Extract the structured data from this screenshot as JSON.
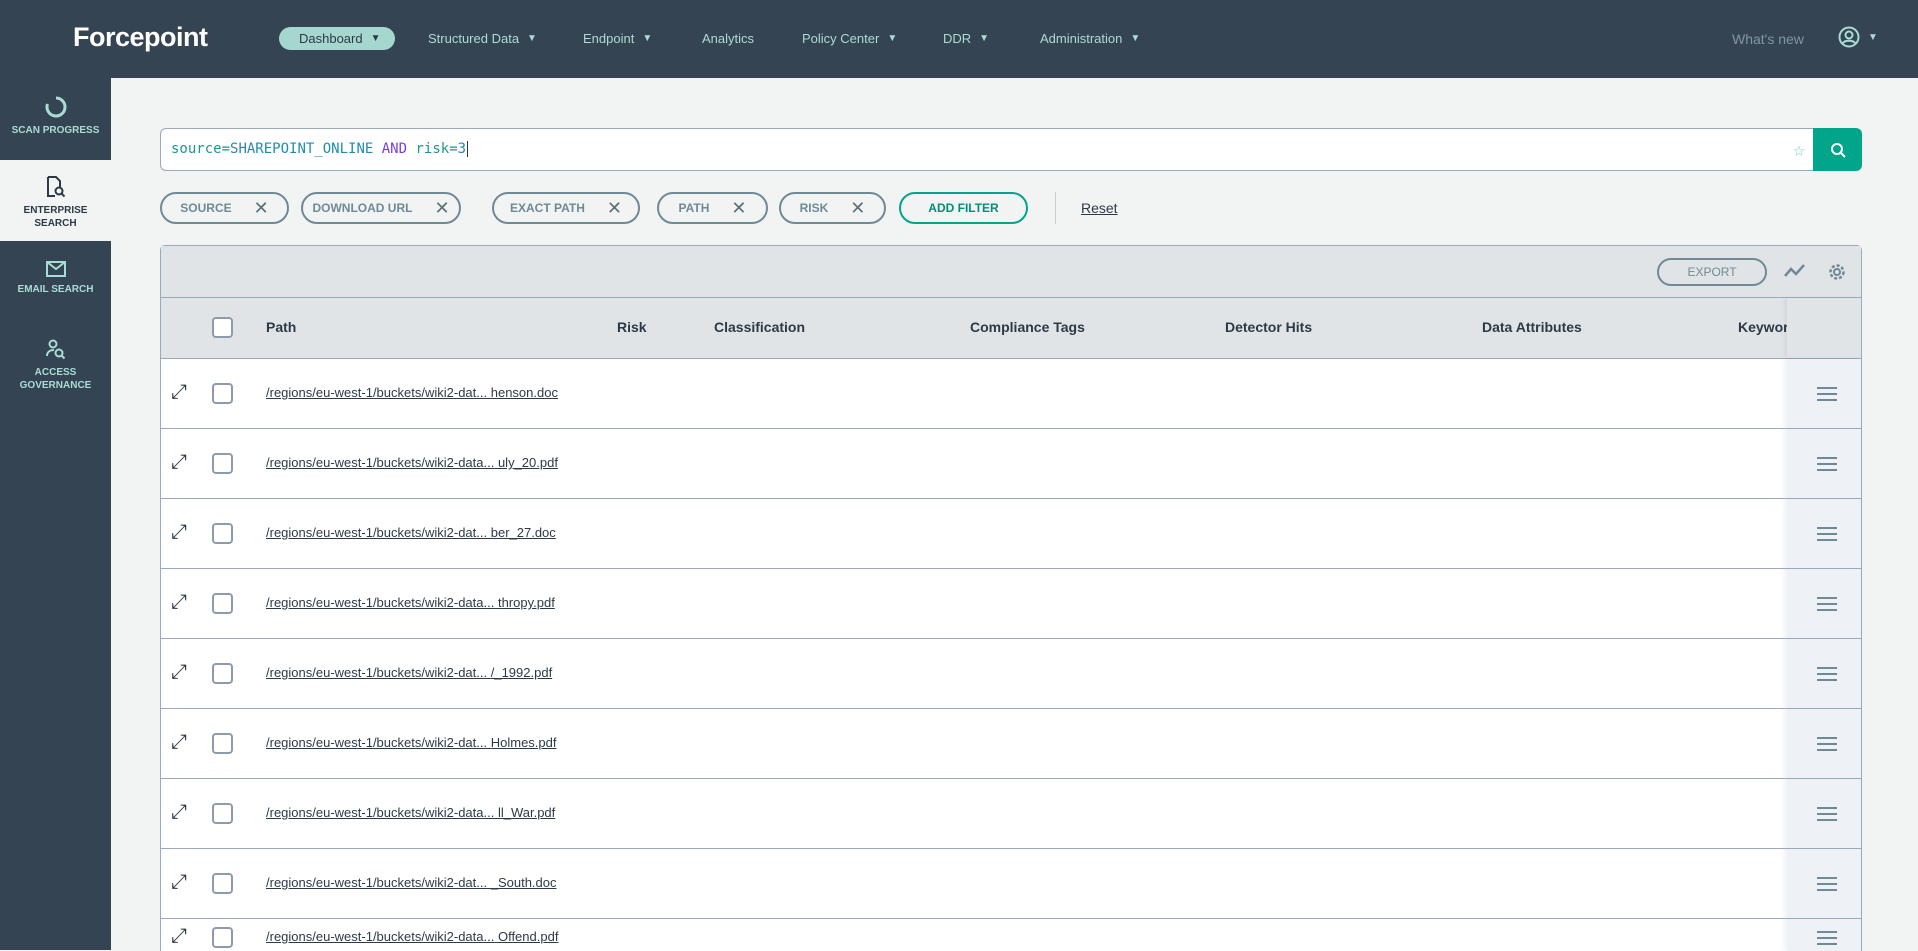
{
  "header": {
    "logo": "Forcepoint",
    "nav": [
      {
        "label": "Dashboard",
        "dropdown": true,
        "active": true
      },
      {
        "label": "Structured Data",
        "dropdown": true
      },
      {
        "label": "Endpoint",
        "dropdown": true
      },
      {
        "label": "Analytics",
        "dropdown": false
      },
      {
        "label": "Policy Center",
        "dropdown": true
      },
      {
        "label": "DDR",
        "dropdown": true
      },
      {
        "label": "Administration",
        "dropdown": true
      }
    ],
    "whats_new": "What's new",
    "caret": "▼"
  },
  "sidebar": {
    "items": [
      {
        "label": "SCAN PROGRESS",
        "icon": "circle-progress-icon"
      },
      {
        "label": "ENTERPRISE SEARCH",
        "icon": "document-search-icon",
        "active": true
      },
      {
        "label": "EMAIL SEARCH",
        "icon": "envelope-icon"
      },
      {
        "label": "ACCESS GOVERNANCE",
        "icon": "user-search-icon"
      }
    ]
  },
  "search": {
    "query_field": "source",
    "query_value": "SHAREPOINT_ONLINE",
    "operator": "AND",
    "query_field2": "risk",
    "query_value2": "3",
    "eq": "="
  },
  "filters": {
    "chips": [
      "SOURCE",
      "DOWNLOAD URL",
      "EXACT PATH",
      "PATH",
      "RISK"
    ],
    "remove": "✕",
    "add_label": "ADD FILTER",
    "reset_label": "Reset"
  },
  "table": {
    "export_label": "EXPORT",
    "columns": [
      "Path",
      "Risk",
      "Classification",
      "Compliance Tags",
      "Detector Hits",
      "Data Attributes",
      "Keyword"
    ],
    "rows": [
      {
        "path": "/regions/eu-west-1/buckets/wiki2-dat...",
        "file": "henson.doc"
      },
      {
        "path": "/regions/eu-west-1/buckets/wiki2-data...",
        "file": "uly_20.pdf"
      },
      {
        "path": "/regions/eu-west-1/buckets/wiki2-dat...",
        "file": "ber_27.doc"
      },
      {
        "path": "/regions/eu-west-1/buckets/wiki2-data...",
        "file": "thropy.pdf"
      },
      {
        "path": "/regions/eu-west-1/buckets/wiki2-dat...",
        "file": "/_1992.pdf"
      },
      {
        "path": "/regions/eu-west-1/buckets/wiki2-dat...",
        "file": "Holmes.pdf"
      },
      {
        "path": "/regions/eu-west-1/buckets/wiki2-data...",
        "file": "ll_War.pdf"
      },
      {
        "path": "/regions/eu-west-1/buckets/wiki2-dat...",
        "file": "_South.doc"
      },
      {
        "path": "/regions/eu-west-1/buckets/wiki2-data...",
        "file": "Offend.pdf"
      }
    ]
  },
  "colors": {
    "header_bg": "#354452",
    "accent": "#00a58a",
    "nav_text": "#a9dcd3"
  }
}
